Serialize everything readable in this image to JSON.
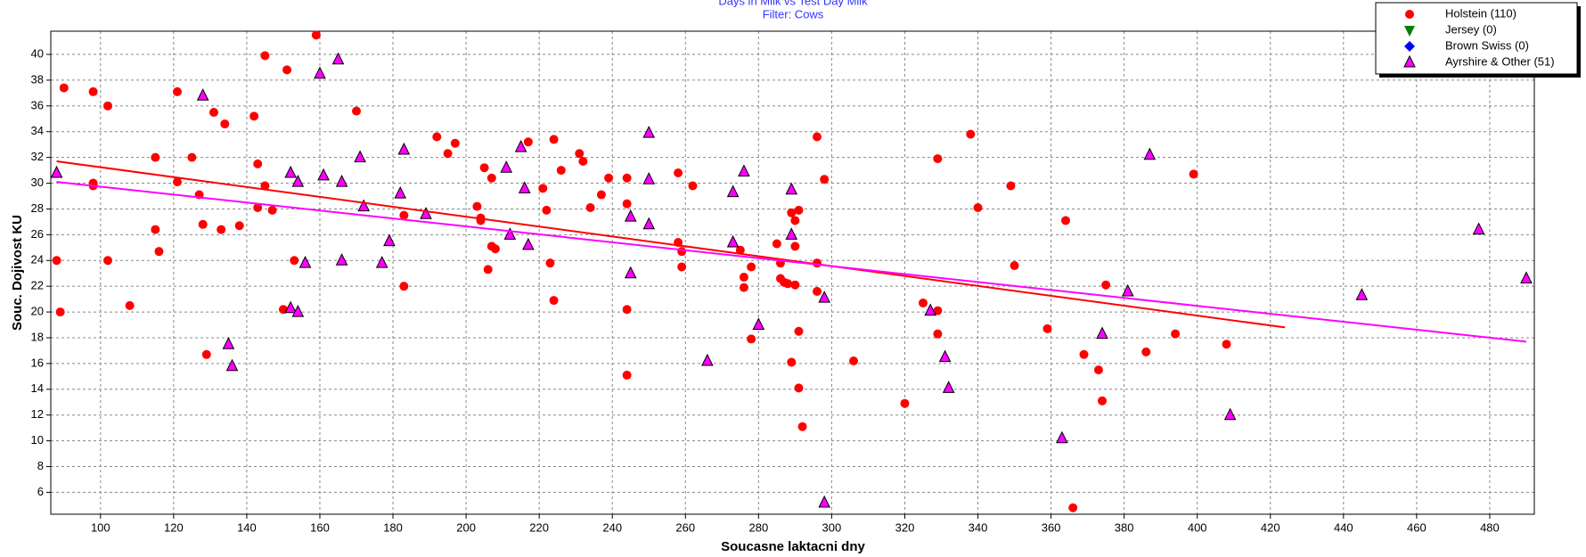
{
  "chart_data": {
    "type": "scatter",
    "title": "Days in Milk vs Test Day Milk",
    "subtitle": "Filter: Cows",
    "x_label": "Soucasne laktacni dny",
    "y_label": "Souc. Dojivost KU",
    "xlim": [
      86.4,
      492.2
    ],
    "ylim": [
      4.3,
      41.8
    ],
    "xticks": [
      100,
      120,
      140,
      160,
      180,
      200,
      220,
      240,
      260,
      280,
      300,
      320,
      340,
      360,
      380,
      400,
      420,
      440,
      460,
      480
    ],
    "yticks": [
      6,
      8,
      10,
      12,
      14,
      16,
      18,
      20,
      22,
      24,
      26,
      28,
      30,
      32,
      34,
      36,
      38,
      40
    ],
    "grid": true,
    "legend": "top-right",
    "series": [
      {
        "name": "Holstein (110)",
        "color": "#ff0000",
        "marker": "circle",
        "x": [
          88,
          89,
          90,
          98,
          98,
          98,
          102,
          102,
          108,
          115,
          115,
          116,
          121,
          121,
          125,
          127,
          128,
          129,
          131,
          133,
          134,
          138,
          142,
          143,
          143,
          145,
          145,
          147,
          150,
          151,
          153,
          159,
          170,
          183,
          183,
          192,
          195,
          197,
          203,
          204,
          204,
          205,
          206,
          207,
          207,
          208,
          217,
          221,
          222,
          223,
          224,
          224,
          226,
          231,
          232,
          234,
          237,
          239,
          244,
          244,
          244,
          244,
          258,
          258,
          259,
          259,
          262,
          275,
          276,
          276,
          278,
          278,
          285,
          286,
          286,
          287,
          288,
          289,
          290,
          290,
          290,
          289,
          291,
          291,
          291,
          292,
          296,
          296,
          296,
          298,
          306,
          320,
          325,
          329,
          329,
          329,
          338,
          340,
          349,
          350,
          359,
          364,
          366,
          369,
          373,
          374,
          375,
          386,
          394,
          399,
          408
        ],
        "values": [
          24.0,
          20.0,
          37.4,
          37.1,
          30.0,
          29.8,
          24.0,
          36.0,
          20.5,
          26.4,
          32.0,
          24.7,
          37.1,
          30.1,
          32.0,
          29.1,
          26.8,
          16.7,
          35.5,
          26.4,
          34.6,
          26.7,
          35.2,
          31.5,
          28.1,
          29.8,
          39.9,
          27.9,
          20.2,
          38.8,
          24.0,
          41.5,
          35.6,
          27.5,
          22.0,
          33.6,
          32.3,
          33.1,
          28.2,
          27.3,
          27.1,
          31.2,
          23.3,
          30.4,
          25.1,
          24.9,
          33.2,
          29.6,
          27.9,
          23.8,
          33.4,
          20.9,
          31.0,
          32.3,
          31.7,
          28.1,
          29.1,
          30.4,
          30.4,
          28.4,
          20.2,
          15.1,
          30.8,
          25.4,
          23.5,
          24.7,
          29.8,
          24.8,
          22.7,
          21.9,
          23.5,
          17.9,
          25.3,
          23.8,
          22.6,
          22.3,
          22.2,
          27.7,
          27.1,
          25.1,
          22.1,
          16.1,
          27.9,
          18.5,
          14.1,
          11.1,
          21.6,
          23.8,
          33.6,
          30.3,
          16.2,
          12.9,
          20.7,
          31.9,
          20.1,
          18.3,
          33.8,
          28.1,
          29.8,
          23.6,
          18.7,
          27.1,
          4.8,
          16.7,
          15.5,
          13.1,
          22.1,
          16.9,
          18.3,
          30.7,
          17.5
        ]
      },
      {
        "name": "Jersey (0)",
        "color": "#008000",
        "marker": "triangle-down",
        "x": [],
        "values": []
      },
      {
        "name": "Brown Swiss (0)",
        "color": "#0000ff",
        "marker": "diamond",
        "x": [],
        "values": []
      },
      {
        "name": "Ayrshire & Other (51)",
        "color": "#ff00ff",
        "marker": "triangle",
        "x": [
          88,
          128,
          135,
          136,
          152,
          152,
          154,
          154,
          156,
          160,
          161,
          165,
          166,
          166,
          171,
          172,
          177,
          179,
          182,
          183,
          189,
          211,
          212,
          215,
          216,
          217,
          245,
          245,
          250,
          250,
          250,
          266,
          273,
          273,
          276,
          280,
          289,
          289,
          298,
          298,
          327,
          331,
          332,
          363,
          374,
          387,
          381,
          409,
          445,
          477,
          490
        ],
        "values": [
          30.8,
          36.8,
          17.5,
          15.8,
          30.8,
          20.3,
          30.1,
          20.0,
          23.8,
          38.5,
          30.6,
          39.6,
          30.1,
          24.0,
          32.0,
          28.2,
          23.8,
          25.5,
          29.2,
          32.6,
          27.6,
          31.2,
          26.0,
          32.8,
          29.6,
          25.2,
          23.0,
          27.4,
          33.9,
          30.3,
          26.8,
          16.2,
          25.4,
          29.3,
          30.9,
          19.0,
          29.5,
          26.0,
          21.1,
          5.2,
          20.1,
          16.5,
          14.1,
          10.2,
          18.3,
          32.2,
          21.6,
          12.0,
          21.3,
          26.4,
          22.6
        ]
      }
    ],
    "trendlines": [
      {
        "color": "#ff0000",
        "x": [
          88,
          424
        ],
        "values": [
          31.7,
          18.8
        ]
      },
      {
        "color": "#ff00ff",
        "x": [
          88,
          490
        ],
        "values": [
          30.1,
          17.7
        ]
      }
    ]
  }
}
